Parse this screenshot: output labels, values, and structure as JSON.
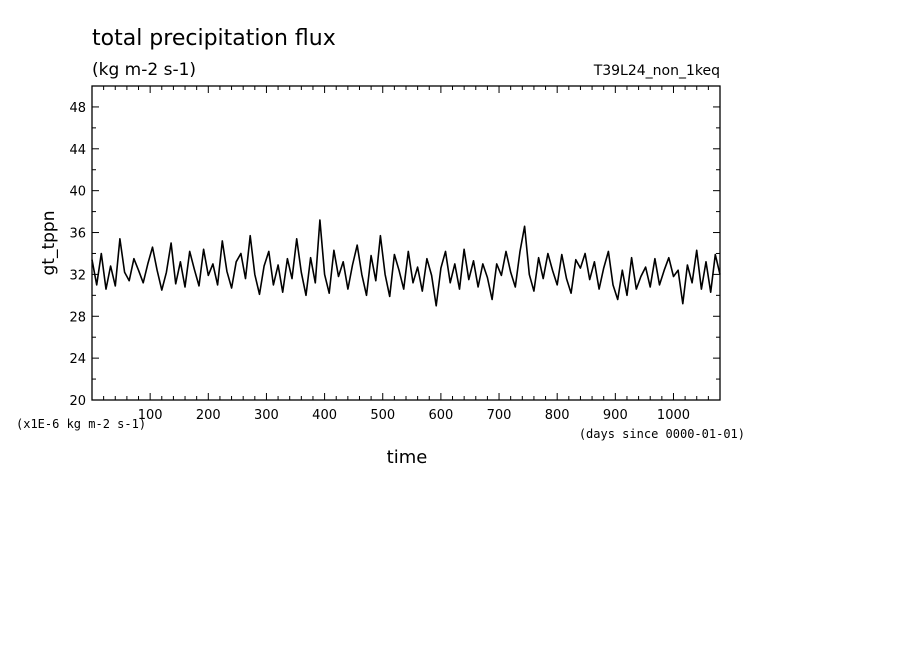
{
  "chart_data": {
    "type": "line",
    "title": "total precipitation flux",
    "subtitle": "(kg m-2 s-1)",
    "run_label": "T39L24_non_1keq",
    "ylabel": "gt_tppn",
    "ylabel_units": "(x1E-6 kg m-2 s-1)",
    "xlabel": "time",
    "xlabel_units": "(days since 0000-01-01)",
    "xlim": [
      0,
      1080
    ],
    "ylim": [
      20,
      50
    ],
    "x_ticks": [
      100,
      200,
      300,
      400,
      500,
      600,
      700,
      800,
      900,
      1000
    ],
    "y_ticks": [
      20,
      24,
      28,
      32,
      36,
      40,
      44,
      48
    ],
    "grid": false,
    "series": [
      {
        "color": "#000000",
        "x": [
          0,
          8,
          16,
          24,
          32,
          40,
          48,
          56,
          64,
          72,
          80,
          88,
          96,
          104,
          112,
          120,
          128,
          136,
          144,
          152,
          160,
          168,
          176,
          184,
          192,
          200,
          208,
          216,
          224,
          232,
          240,
          248,
          256,
          264,
          272,
          280,
          288,
          296,
          304,
          312,
          320,
          328,
          336,
          344,
          352,
          360,
          368,
          376,
          384,
          392,
          400,
          408,
          416,
          424,
          432,
          440,
          448,
          456,
          464,
          472,
          480,
          488,
          496,
          504,
          512,
          520,
          528,
          536,
          544,
          552,
          560,
          568,
          576,
          584,
          592,
          600,
          608,
          616,
          624,
          632,
          640,
          648,
          656,
          664,
          672,
          680,
          688,
          696,
          704,
          712,
          720,
          728,
          736,
          744,
          752,
          760,
          768,
          776,
          784,
          792,
          800,
          808,
          816,
          824,
          832,
          840,
          848,
          856,
          864,
          872,
          880,
          888,
          896,
          904,
          912,
          920,
          928,
          936,
          944,
          952,
          960,
          968,
          976,
          984,
          992,
          1000,
          1008,
          1016,
          1024,
          1032,
          1040,
          1048,
          1056,
          1064,
          1072,
          1080
        ],
        "values": [
          33.4,
          31.0,
          34.0,
          30.6,
          32.8,
          30.9,
          35.4,
          32.2,
          31.4,
          33.5,
          32.4,
          31.2,
          33.0,
          34.6,
          32.4,
          30.5,
          32.2,
          35.0,
          31.1,
          33.2,
          30.8,
          34.2,
          32.5,
          30.9,
          34.4,
          31.9,
          33.0,
          31.0,
          35.2,
          32.3,
          30.7,
          33.2,
          34.0,
          31.6,
          35.7,
          32.0,
          30.1,
          32.8,
          34.2,
          31.0,
          32.9,
          30.3,
          33.5,
          31.6,
          35.4,
          32.2,
          30.0,
          33.6,
          31.2,
          37.2,
          32.0,
          30.2,
          34.3,
          31.8,
          33.2,
          30.6,
          32.9,
          34.8,
          32.0,
          30.0,
          33.8,
          31.4,
          35.7,
          32.0,
          29.9,
          33.9,
          32.4,
          30.6,
          34.2,
          31.2,
          32.7,
          30.4,
          33.5,
          31.9,
          29.0,
          32.6,
          34.2,
          31.2,
          33.0,
          30.6,
          34.4,
          31.5,
          33.3,
          30.8,
          33.0,
          31.7,
          29.6,
          33.0,
          31.9,
          34.2,
          32.2,
          30.8,
          34.2,
          36.6,
          32.0,
          30.4,
          33.6,
          31.6,
          34.0,
          32.4,
          31.0,
          33.9,
          31.6,
          30.2,
          33.4,
          32.6,
          34.0,
          31.5,
          33.2,
          30.6,
          32.6,
          34.2,
          31.0,
          29.6,
          32.4,
          30.0,
          33.6,
          30.6,
          31.8,
          32.7,
          30.8,
          33.5,
          31.0,
          32.4,
          33.6,
          31.8,
          32.4,
          29.2,
          32.9,
          31.2,
          34.3,
          30.6,
          33.2,
          30.3,
          33.9,
          32.0
        ]
      }
    ]
  }
}
